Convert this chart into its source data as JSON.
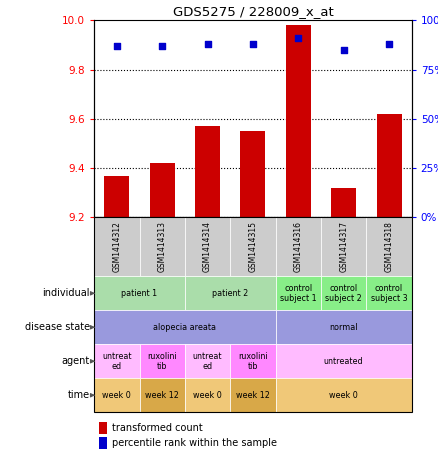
{
  "title": "GDS5275 / 228009_x_at",
  "samples": [
    "GSM1414312",
    "GSM1414313",
    "GSM1414314",
    "GSM1414315",
    "GSM1414316",
    "GSM1414317",
    "GSM1414318"
  ],
  "transformed_count": [
    9.37,
    9.42,
    9.57,
    9.55,
    9.98,
    9.32,
    9.62
  ],
  "percentile_rank": [
    87,
    87,
    88,
    88,
    91,
    85,
    88
  ],
  "ylim_left": [
    9.2,
    10.0
  ],
  "ylim_right": [
    0,
    100
  ],
  "yticks_left": [
    9.2,
    9.4,
    9.6,
    9.8,
    10.0
  ],
  "yticks_right": [
    0,
    25,
    50,
    75,
    100
  ],
  "bar_color": "#cc0000",
  "dot_color": "#0000cc",
  "annotation_rows": [
    {
      "key": "individual",
      "label": "individual",
      "groups": [
        {
          "cols": [
            0,
            1
          ],
          "text": "patient 1",
          "color": "#aaddaa"
        },
        {
          "cols": [
            2,
            3
          ],
          "text": "patient 2",
          "color": "#aaddaa"
        },
        {
          "cols": [
            4
          ],
          "text": "control\nsubject 1",
          "color": "#88ee88"
        },
        {
          "cols": [
            5
          ],
          "text": "control\nsubject 2",
          "color": "#88ee88"
        },
        {
          "cols": [
            6
          ],
          "text": "control\nsubject 3",
          "color": "#88ee88"
        }
      ]
    },
    {
      "key": "disease_state",
      "label": "disease state",
      "groups": [
        {
          "cols": [
            0,
            1,
            2,
            3
          ],
          "text": "alopecia areata",
          "color": "#9999dd"
        },
        {
          "cols": [
            4,
            5,
            6
          ],
          "text": "normal",
          "color": "#9999dd"
        }
      ]
    },
    {
      "key": "agent",
      "label": "agent",
      "groups": [
        {
          "cols": [
            0
          ],
          "text": "untreat\ned",
          "color": "#ffbbff"
        },
        {
          "cols": [
            1
          ],
          "text": "ruxolini\ntib",
          "color": "#ff88ff"
        },
        {
          "cols": [
            2
          ],
          "text": "untreat\ned",
          "color": "#ffbbff"
        },
        {
          "cols": [
            3
          ],
          "text": "ruxolini\ntib",
          "color": "#ff88ff"
        },
        {
          "cols": [
            4,
            5,
            6
          ],
          "text": "untreated",
          "color": "#ffbbff"
        }
      ]
    },
    {
      "key": "time",
      "label": "time",
      "groups": [
        {
          "cols": [
            0
          ],
          "text": "week 0",
          "color": "#f0c878"
        },
        {
          "cols": [
            1
          ],
          "text": "week 12",
          "color": "#d8a848"
        },
        {
          "cols": [
            2
          ],
          "text": "week 0",
          "color": "#f0c878"
        },
        {
          "cols": [
            3
          ],
          "text": "week 12",
          "color": "#d8a848"
        },
        {
          "cols": [
            4,
            5,
            6
          ],
          "text": "week 0",
          "color": "#f0c878"
        }
      ]
    }
  ]
}
